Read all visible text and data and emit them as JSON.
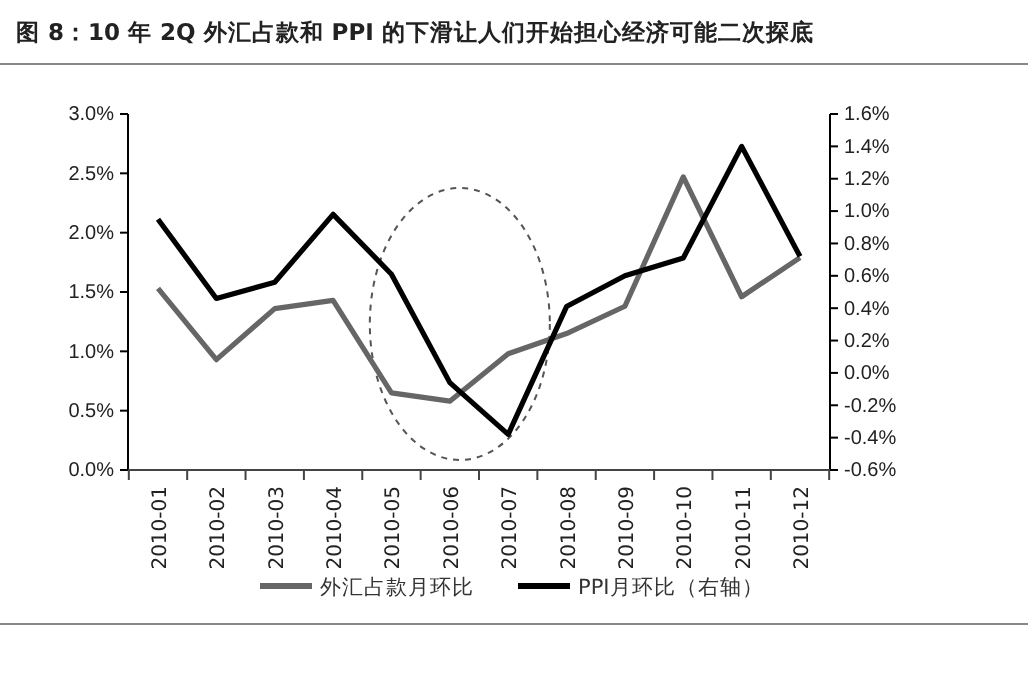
{
  "chart_data": {
    "type": "line",
    "title": "图 8：10 年 2Q 外汇占款和 PPI 的下滑让人们开始担心经济可能二次探底",
    "categories": [
      "2010-01",
      "2010-02",
      "2010-03",
      "2010-04",
      "2010-05",
      "2010-06",
      "2010-07",
      "2010-08",
      "2010-09",
      "2010-10",
      "2010-11",
      "2010-12"
    ],
    "series": [
      {
        "name": "外汇占款月环比",
        "color": "#666666",
        "values": [
          1.53,
          0.93,
          1.36,
          1.43,
          0.65,
          0.58,
          0.98,
          1.15,
          1.38,
          2.47,
          1.46,
          1.79
        ]
      },
      {
        "name": "PPI月环比（右轴）",
        "color": "#000000",
        "axis": "y2",
        "values": [
          0.95,
          0.46,
          0.56,
          0.98,
          0.61,
          -0.06,
          -0.38,
          0.41,
          0.6,
          0.71,
          1.4,
          0.72
        ]
      }
    ],
    "ylim": [
      0,
      3
    ],
    "yticks": [
      {
        "value": 0,
        "label": "0.0%"
      },
      {
        "value": 0.5,
        "label": "0.5%"
      },
      {
        "value": 1,
        "label": "1.0%"
      },
      {
        "value": 1.5,
        "label": "1.5%"
      },
      {
        "value": 2,
        "label": "2.0%"
      },
      {
        "value": 2.5,
        "label": "2.5%"
      },
      {
        "value": 3,
        "label": "3.0%"
      }
    ],
    "y2lim": [
      -0.6,
      1.6
    ],
    "y2ticks": [
      {
        "value": -0.6,
        "label": "-0.6%"
      },
      {
        "value": -0.4,
        "label": "-0.4%"
      },
      {
        "value": -0.2,
        "label": "-0.2%"
      },
      {
        "value": 0,
        "label": "0.0%"
      },
      {
        "value": 0.2,
        "label": "0.2%"
      },
      {
        "value": 0.4,
        "label": "0.4%"
      },
      {
        "value": 0.6,
        "label": "0.6%"
      },
      {
        "value": 0.8,
        "label": "0.8%"
      },
      {
        "value": 1,
        "label": "1.0%"
      },
      {
        "value": 1.2,
        "label": "1.2%"
      },
      {
        "value": 1.4,
        "label": "1.4%"
      },
      {
        "value": 1.6,
        "label": "1.6%"
      }
    ],
    "grid": false,
    "legend": "bottom",
    "marker": "none",
    "line_style": "solid"
  }
}
